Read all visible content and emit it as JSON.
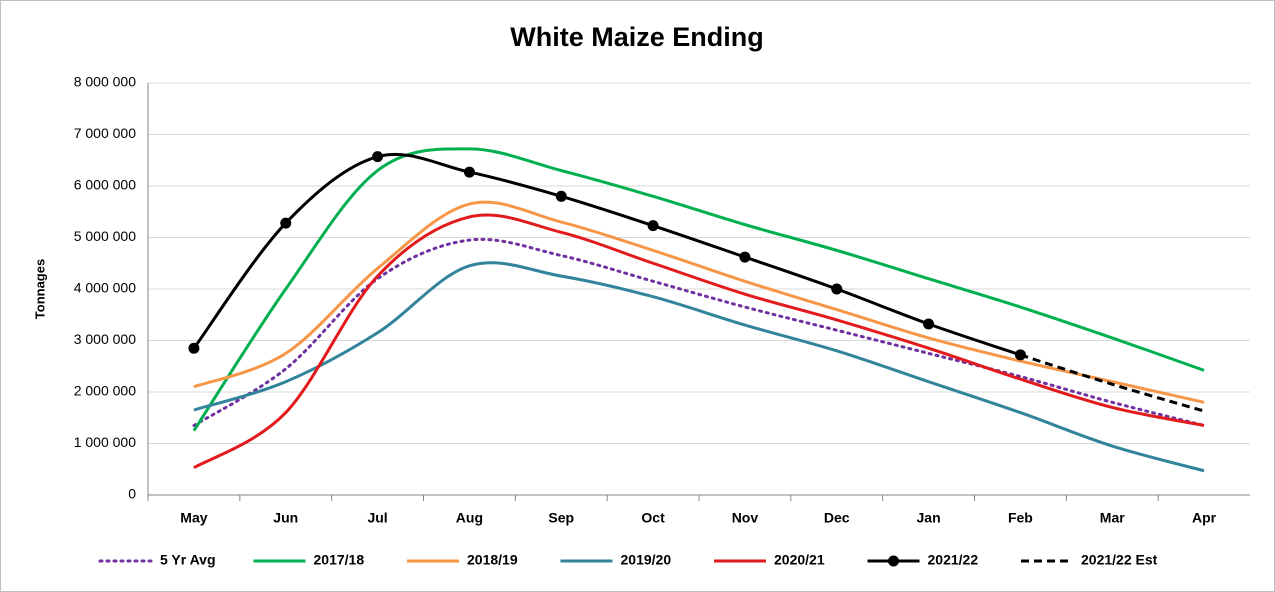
{
  "chart_data": {
    "type": "line",
    "title": "White Maize Ending",
    "ylabel": "Tonnages",
    "categories": [
      "May",
      "Jun",
      "Jul",
      "Aug",
      "Sep",
      "Oct",
      "Nov",
      "Dec",
      "Jan",
      "Feb",
      "Mar",
      "Apr"
    ],
    "ylim": [
      0,
      8000000
    ],
    "yticks": [
      0,
      {
        "value": 1000000,
        "label": "1 000 000"
      },
      {
        "value": 2000000,
        "label": "2 000 000"
      },
      {
        "value": 3000000,
        "label": "3 000 000"
      },
      {
        "value": 4000000,
        "label": "4 000 000"
      },
      {
        "value": 5000000,
        "label": "5 000 000"
      },
      {
        "value": 6000000,
        "label": "6 000 000"
      },
      {
        "value": 7000000,
        "label": "7 000 000"
      },
      {
        "value": 8000000,
        "label": "8 000 000"
      }
    ],
    "grid": true,
    "legend": "bottom",
    "series": [
      {
        "name": "5 Yr Avg",
        "color": "#7030a0",
        "style": "dotted",
        "values": [
          1350000,
          2450000,
          4200000,
          4950000,
          4650000,
          4150000,
          3650000,
          3200000,
          2750000,
          2300000,
          1800000,
          1350000
        ]
      },
      {
        "name": "2017/18",
        "color": "#00b050",
        "style": "solid",
        "values": [
          1250000,
          4000000,
          6300000,
          6720000,
          6300000,
          5800000,
          5250000,
          4750000,
          4200000,
          3650000,
          3050000,
          2420000
        ]
      },
      {
        "name": "2018/19",
        "color": "#f79646",
        "style": "solid",
        "values": [
          2100000,
          2750000,
          4400000,
          5650000,
          5300000,
          4750000,
          4150000,
          3600000,
          3050000,
          2600000,
          2200000,
          1800000
        ]
      },
      {
        "name": "2019/20",
        "color": "#31849b",
        "style": "solid",
        "values": [
          1650000,
          2200000,
          3150000,
          4450000,
          4250000,
          3850000,
          3300000,
          2800000,
          2200000,
          1600000,
          950000,
          470000
        ]
      },
      {
        "name": "2020/21",
        "color": "#e31a1c",
        "style": "solid",
        "values": [
          530000,
          1600000,
          4250000,
          5400000,
          5100000,
          4500000,
          3900000,
          3400000,
          2850000,
          2250000,
          1700000,
          1350000
        ]
      },
      {
        "name": "2021/22",
        "color": "#000000",
        "style": "solid",
        "markers": true,
        "values": [
          2850000,
          5280000,
          6570000,
          6270000,
          5800000,
          5230000,
          4620000,
          4000000,
          3320000,
          2720000,
          null,
          null
        ]
      },
      {
        "name": "2021/22 Est",
        "color": "#000000",
        "style": "dashed",
        "values": [
          null,
          null,
          null,
          null,
          null,
          null,
          null,
          null,
          null,
          2720000,
          2150000,
          1630000
        ]
      }
    ]
  }
}
